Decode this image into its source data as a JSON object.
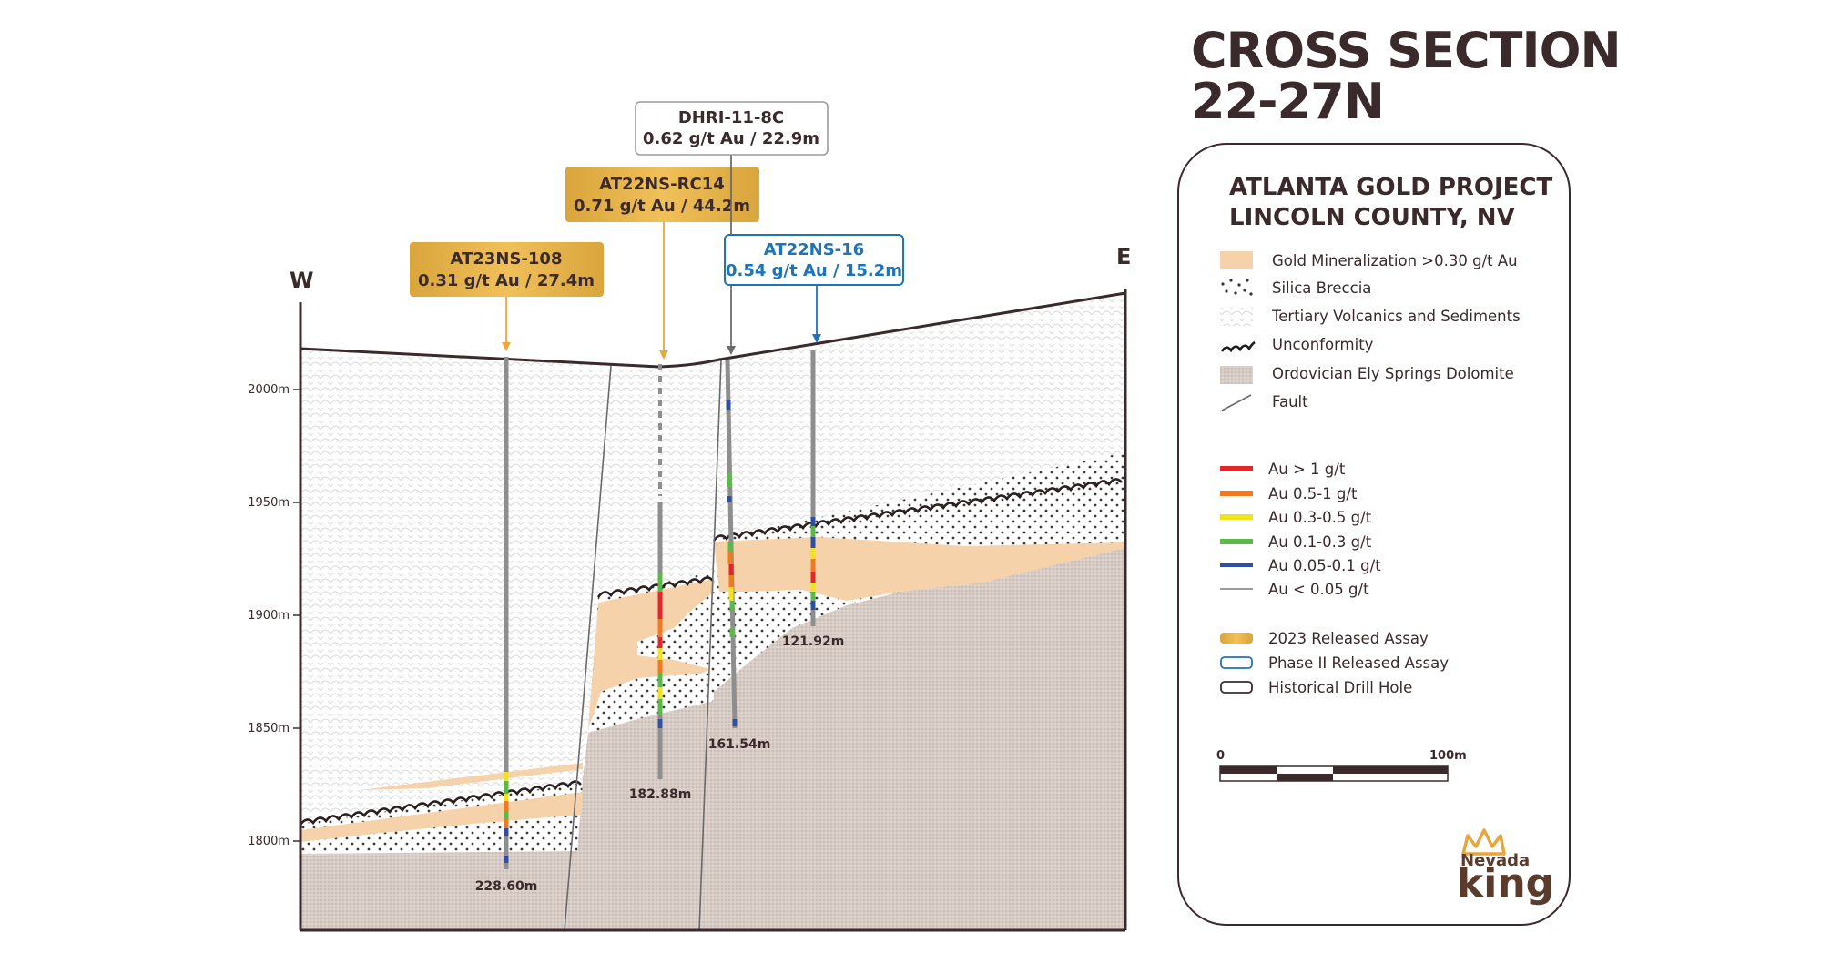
{
  "title": {
    "line1": "CROSS SECTION",
    "line2": "22-27N"
  },
  "project": {
    "line1": "ATLANTA GOLD PROJECT",
    "line2": "LINCOLN COUNTY, NV"
  },
  "directions": {
    "west": "W",
    "east": "E"
  },
  "elevation_ticks": [
    "2000m",
    "1950m",
    "1900m",
    "1850m",
    "1800m"
  ],
  "drill_holes": [
    {
      "id": "AT23NS-108",
      "assay": "0.31 g/t Au / 27.4m",
      "depth": "228.60m",
      "category": "2023 Released Assay"
    },
    {
      "id": "AT22NS-RC14",
      "assay": "0.71 g/t Au / 44.2m",
      "depth": "182.88m",
      "category": "2023 Released Assay"
    },
    {
      "id": "DHRI-11-8C",
      "assay": "0.62 g/t Au / 22.9m",
      "depth": "161.54m",
      "category": "Historical Drill Hole"
    },
    {
      "id": "AT22NS-16",
      "assay": "0.54 g/t Au / 15.2m",
      "depth": "121.92m",
      "category": "Phase II Released Assay"
    }
  ],
  "legend_units": [
    {
      "label": "Gold Mineralization >0.30 g/t Au",
      "icon": "gold-swatch"
    },
    {
      "label": "Silica Breccia",
      "icon": "dot-swatch"
    },
    {
      "label": "Tertiary Volcanics and Sediments",
      "icon": "scale-swatch"
    },
    {
      "label": "Unconformity",
      "icon": "wavy-line"
    },
    {
      "label": "Ordovician Ely Springs Dolomite",
      "icon": "dolomite-swatch"
    },
    {
      "label": "Fault",
      "icon": "fault-line"
    }
  ],
  "legend_grades": [
    {
      "label": "Au > 1 g/t",
      "color": "#e3262a"
    },
    {
      "label": "Au   0.5-1 g/t",
      "color": "#f07a22"
    },
    {
      "label": "Au   0.3-0.5 g/t",
      "color": "#f2e21e"
    },
    {
      "label": "Au   0.1-0.3 g/t",
      "color": "#5bb947"
    },
    {
      "label": "Au   0.05-0.1 g/t",
      "color": "#2e4fa3"
    },
    {
      "label": "Au < 0.05 g/t",
      "color": "#9a9a9a"
    }
  ],
  "legend_labels": [
    {
      "label": "2023 Released Assay",
      "icon": "gold-label"
    },
    {
      "label": "Phase II Released Assay",
      "icon": "blue-label"
    },
    {
      "label": "Historical Drill Hole",
      "icon": "grey-label"
    }
  ],
  "scale_bar": {
    "start": "0",
    "end": "100m"
  },
  "logo": {
    "line1": "Nevada",
    "line2": "king"
  },
  "colors": {
    "gold": "#e8b54a",
    "blue": "#1f73b7",
    "dark": "#3b2a2b",
    "mineralization": "#f6d2ab"
  }
}
